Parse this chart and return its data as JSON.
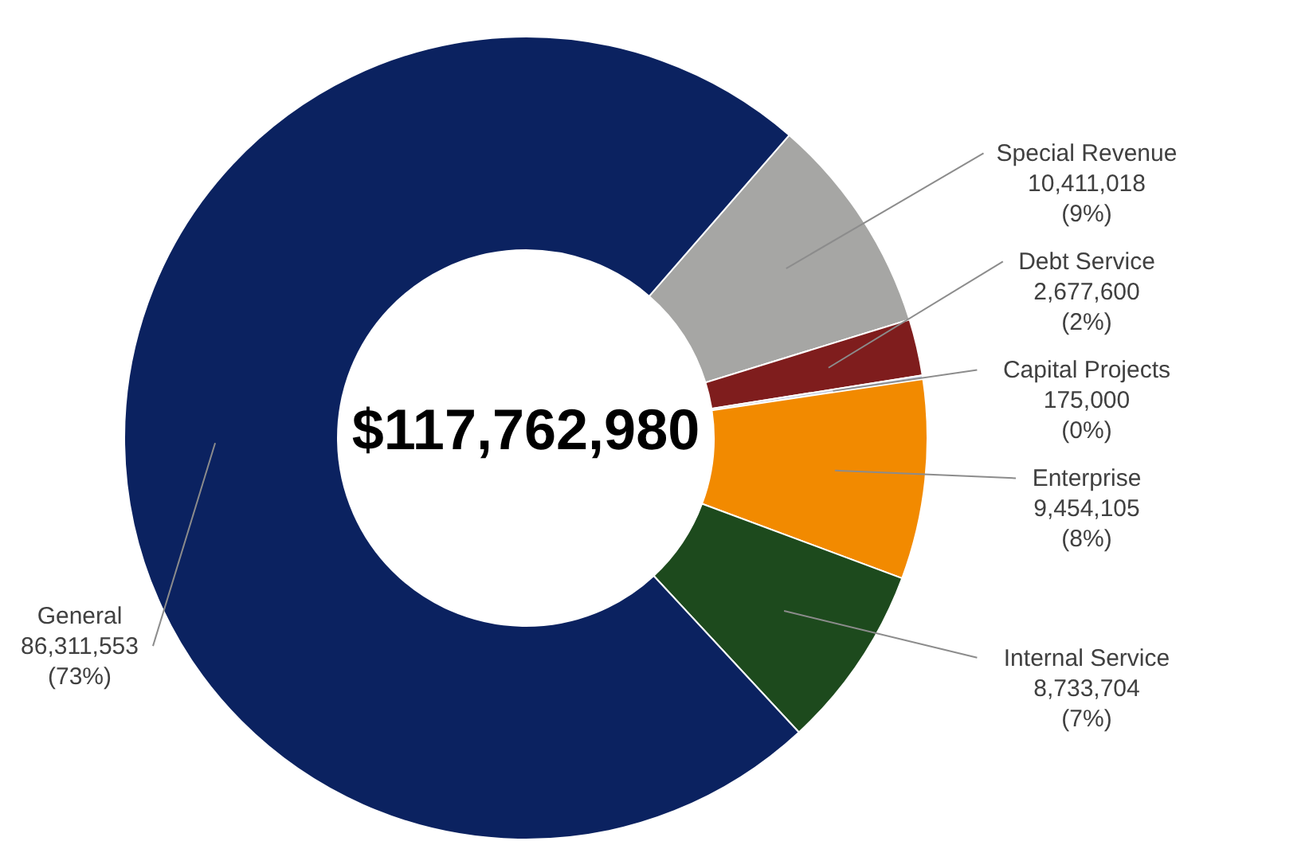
{
  "chart_data": {
    "type": "donut",
    "categories": [
      "Special Revenue",
      "Debt Service",
      "Capital Projects",
      "Enterprise",
      "Internal Service",
      "General"
    ],
    "values": [
      10411018,
      2677600,
      175000,
      9454105,
      8733704,
      86311553
    ],
    "colors": [
      "#a6a6a4",
      "#7f1d1d",
      "#b8c4dc",
      "#f28a00",
      "#1d4a1d",
      "#0b2260"
    ],
    "value_labels": [
      "10,411,018 (9%)",
      "2,677,600 (2%)",
      "175,000 (0%)",
      "9,454,105 (8%)",
      "8,733,704 (7%)",
      "86,311,553 (73%)"
    ],
    "annotations": [
      "$117,762,980"
    ]
  }
}
